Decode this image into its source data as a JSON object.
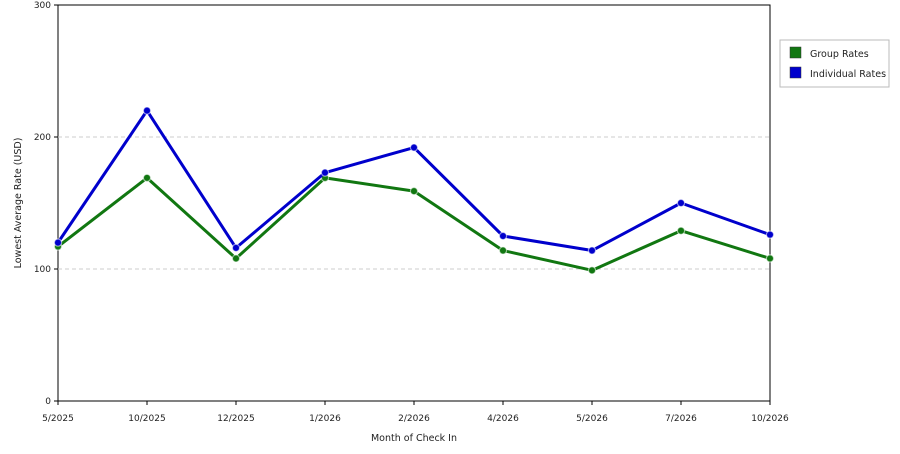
{
  "chart_data": {
    "type": "line",
    "title": "",
    "xlabel": "Month of Check In",
    "ylabel": "Lowest Average Rate (USD)",
    "categories": [
      "5/2025",
      "10/2025",
      "12/2025",
      "1/2026",
      "2/2026",
      "4/2026",
      "5/2026",
      "7/2026",
      "10/2026"
    ],
    "ylim": [
      0,
      300
    ],
    "yticks": [
      0,
      100,
      200,
      300
    ],
    "grid": "horizontal dashed",
    "legend_position": "right",
    "series": [
      {
        "name": "Group Rates",
        "color": "#117711",
        "values": [
          117,
          169,
          108,
          169,
          159,
          114,
          99,
          129,
          108
        ]
      },
      {
        "name": "Individual Rates",
        "color": "#0000cc",
        "values": [
          120,
          220,
          116,
          173,
          192,
          125,
          114,
          150,
          126
        ]
      }
    ]
  }
}
